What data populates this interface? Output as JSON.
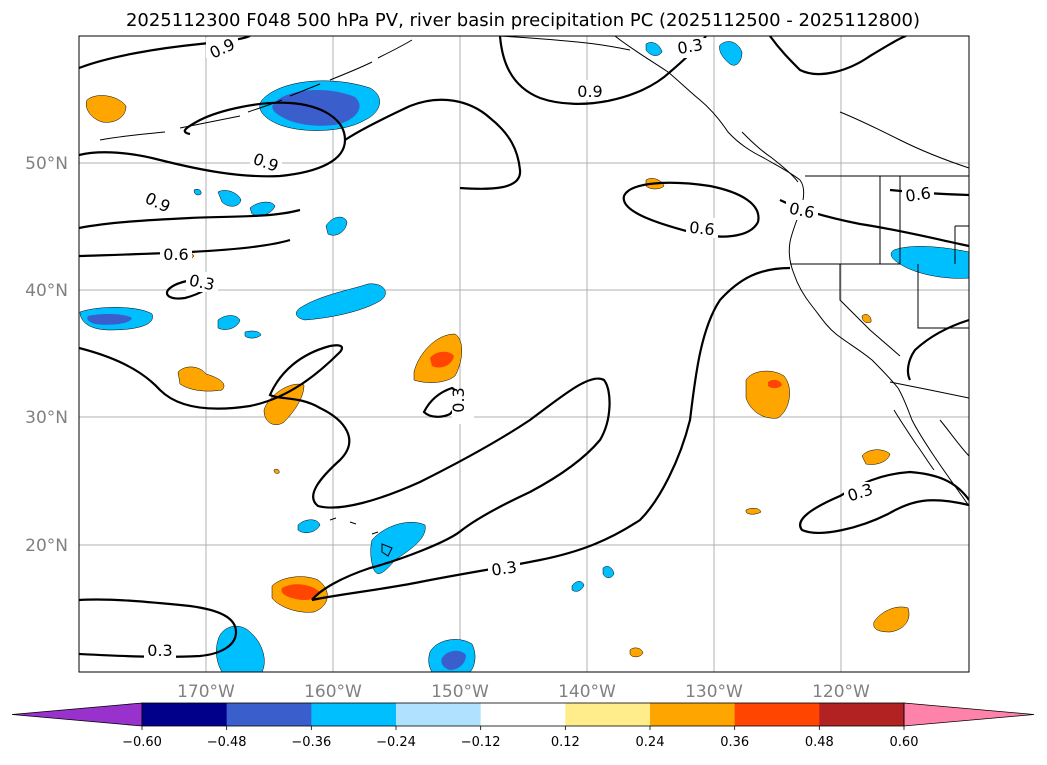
{
  "title": "2025112300 F048 500 hPa PV, river basin precipitation PC (2025112500 - 2025112800)",
  "map": {
    "lat_labels": [
      "50°N",
      "40°N",
      "30°N",
      "20°N"
    ],
    "lon_labels": [
      "170°W",
      "160°W",
      "150°W",
      "140°W",
      "130°W",
      "120°W"
    ],
    "contour_labels": [
      "0.9",
      "0.9",
      "0.9",
      "0.9",
      "0.6",
      "0.3",
      "0.3",
      "0.3",
      "0.6",
      "0.6",
      "0.6",
      "0.3",
      "0.3",
      "0.3"
    ]
  },
  "colorbar": {
    "ticks": [
      "−0.60",
      "−0.48",
      "−0.36",
      "−0.24",
      "−0.12",
      "0.12",
      "0.24",
      "0.36",
      "0.48",
      "0.60"
    ],
    "colors": [
      "#9932cc",
      "#00008b",
      "#3a5fcd",
      "#00bfff",
      "#b0e2ff",
      "#ffffff",
      "#ffec8b",
      "#ffa500",
      "#ff4500",
      "#b22222",
      "#ff82ab"
    ]
  },
  "colors": {
    "neg_light": "#00bfff",
    "neg_dark": "#3a5fcd",
    "pos_light": "#ffa500",
    "pos_dark": "#ff4500"
  }
}
